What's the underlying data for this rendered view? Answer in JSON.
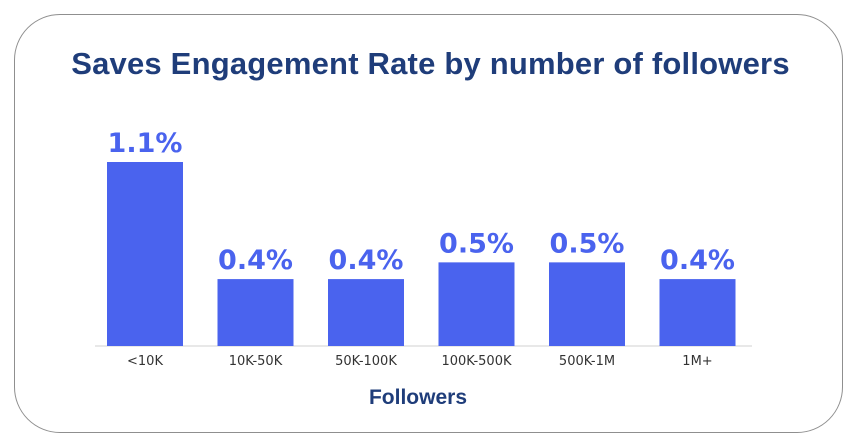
{
  "chart_data": {
    "type": "bar",
    "title": "Saves Engagement Rate by number of followers",
    "xlabel": "Followers",
    "ylabel": "",
    "categories": [
      "<10K",
      "10K-50K",
      "50K-100K",
      "100K-500K",
      "500K-1M",
      "1M+"
    ],
    "values": [
      1.1,
      0.4,
      0.4,
      0.5,
      0.5,
      0.4
    ],
    "labels": [
      "1.1%",
      "0.4%",
      "0.4%",
      "0.5%",
      "0.5%",
      "0.4%"
    ],
    "ylim": [
      0,
      1.1
    ],
    "grid": false,
    "bar_color": "#4a63ee"
  }
}
